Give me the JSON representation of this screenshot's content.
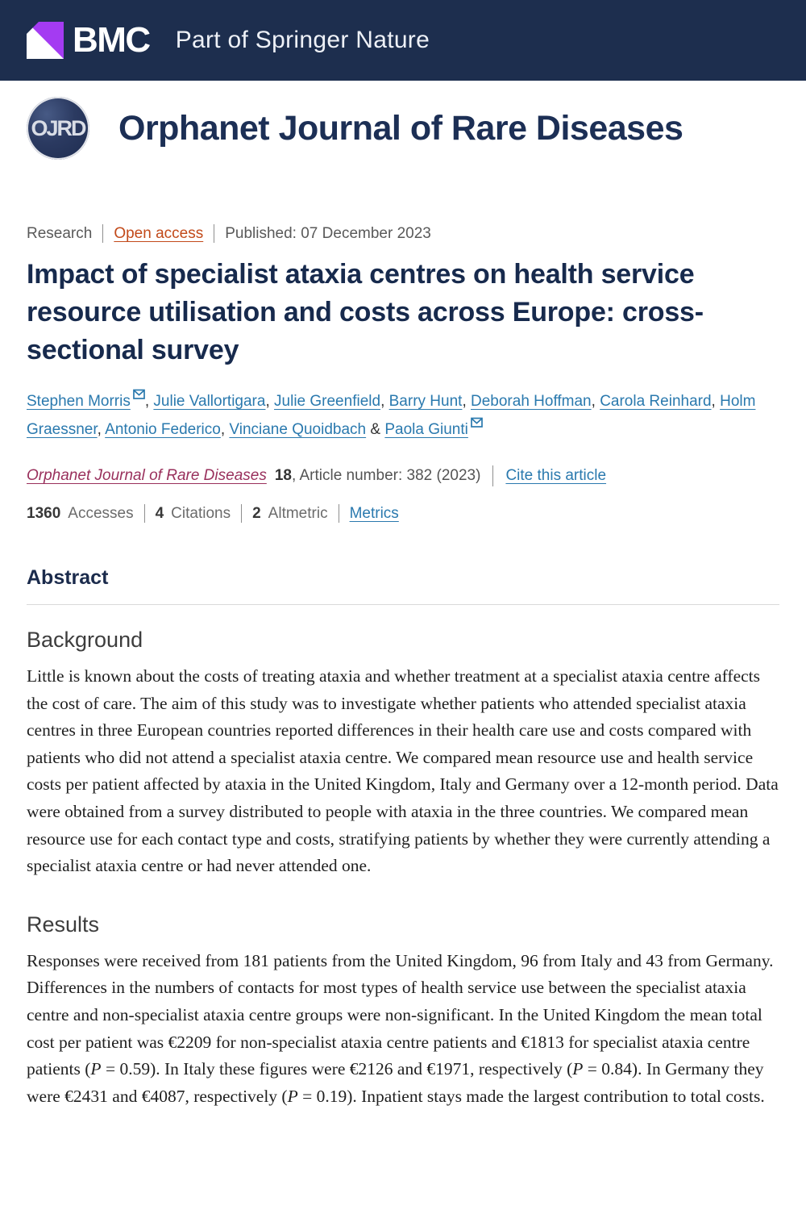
{
  "header": {
    "brand": "BMC",
    "tagline": "Part of Springer Nature"
  },
  "journal": {
    "logo_text": "OJRD",
    "name": "Orphanet Journal of Rare Diseases"
  },
  "article": {
    "type": "Research",
    "access": "Open access",
    "published": "Published: 07 December 2023",
    "title": "Impact of specialist ataxia centres on health service resource utilisation and costs across Europe: cross-sectional survey",
    "authors": [
      {
        "name": "Stephen Morris",
        "email": true
      },
      {
        "name": "Julie Vallortigara"
      },
      {
        "name": "Julie Greenfield"
      },
      {
        "name": "Barry Hunt"
      },
      {
        "name": "Deborah Hoffman"
      },
      {
        "name": "Carola Reinhard"
      },
      {
        "name": "Holm Graessner"
      },
      {
        "name": "Antonio Federico"
      },
      {
        "name": "Vinciane Quoidbach"
      },
      {
        "name": "Paola Giunti",
        "email": true
      }
    ],
    "citation": {
      "journal": "Orphanet Journal of Rare Diseases",
      "volume": "18",
      "suffix": ", Article number: 382 (2023)",
      "cite_label": "Cite this article"
    },
    "metrics": [
      {
        "value": "1360",
        "label": "Accesses"
      },
      {
        "value": "4",
        "label": "Citations"
      },
      {
        "value": "2",
        "label": "Altmetric"
      }
    ],
    "metrics_link": "Metrics"
  },
  "abstract": {
    "heading": "Abstract",
    "sections": [
      {
        "heading": "Background",
        "runs": [
          {
            "t": "Little is known about the costs of treating ataxia and whether treatment at a specialist ataxia centre affects the cost of care. The aim of this study was to investigate whether patients who attended specialist ataxia centres in three European countries reported differences in their health care use and costs compared with patients who did not attend a specialist ataxia centre. We compared mean resource use and health service costs per patient affected by ataxia in the United Kingdom, Italy and Germany over a 12-month period. Data were obtained from a survey distributed to people with ataxia in the three countries. We compared mean resource use for each contact type and costs, stratifying patients by whether they were currently attending a specialist ataxia centre or had never attended one."
          }
        ]
      },
      {
        "heading": "Results",
        "runs": [
          {
            "t": "Responses were received from 181 patients from the United Kingdom, 96 from Italy and 43 from Germany. Differences in the numbers of contacts for most types of health service use between the specialist ataxia centre and non-specialist ataxia centre groups were non-significant. In the United Kingdom the mean total cost per patient was €2209 for non-specialist ataxia centre patients and €1813 for specialist ataxia centre patients ("
          },
          {
            "t": "P",
            "i": true
          },
          {
            "t": " = 0.59). In Italy these figures were €2126 and €1971, respectively ("
          },
          {
            "t": "P",
            "i": true
          },
          {
            "t": " = 0.84). In Germany they were €2431 and €4087, respectively ("
          },
          {
            "t": "P",
            "i": true
          },
          {
            "t": " = 0.19). Inpatient stays made the largest contribution to total costs."
          }
        ]
      }
    ]
  },
  "colors": {
    "header_bg": "#1d2e4e",
    "brand_purple": "#a43bf2",
    "link_blue": "#2a79ae",
    "open_access_orange": "#c24a1a",
    "journal_link_maroon": "#99305c",
    "title_navy": "#172a4d"
  }
}
